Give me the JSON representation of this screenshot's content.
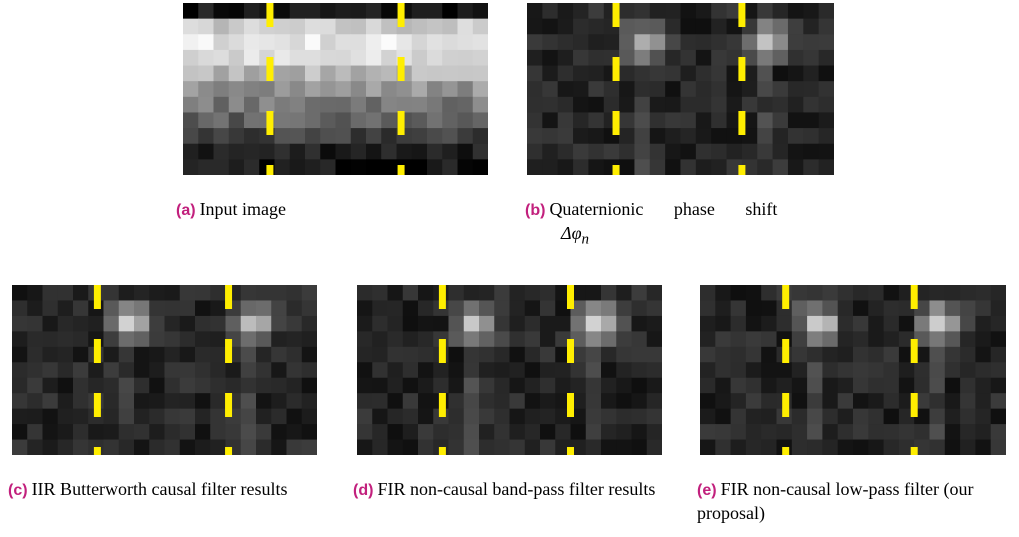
{
  "figures": [
    {
      "label": "(a)",
      "caption": "Input image"
    },
    {
      "label": "(b)",
      "caption": "Quaternionic phase shift",
      "math": "Δφ",
      "math_sub": "n"
    },
    {
      "label": "(c)",
      "caption": "IIR Butterworth causal filter results"
    },
    {
      "label": "(d)",
      "caption": "FIR non-causal band-pass filter results"
    },
    {
      "label": "(e)",
      "caption": "FIR non-causal low-pass filter (our proposal)"
    }
  ]
}
